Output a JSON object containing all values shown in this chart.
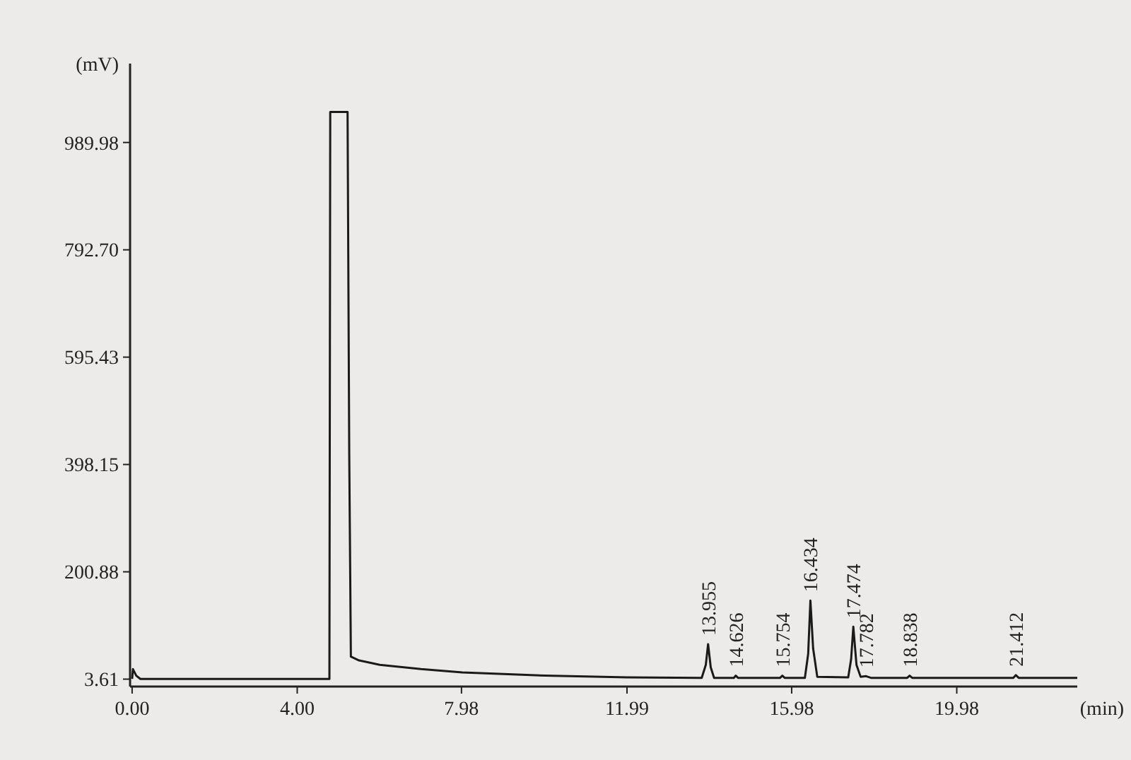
{
  "chart_data": {
    "type": "line",
    "xlabel": "(min)",
    "ylabel": "(mV)",
    "xlim": [
      -0.05,
      22.9
    ],
    "ylim": [
      -10,
      1135
    ],
    "xticks": [
      {
        "value": 0,
        "label": "0.00"
      },
      {
        "value": 4,
        "label": "4.00"
      },
      7.98,
      11.99,
      15.98,
      19.98
    ],
    "yticks": [
      3.61,
      200.88,
      398.15,
      595.43,
      {
        "value": 792.7,
        "label": "792.70"
      },
      989.98
    ],
    "grid": false,
    "marker": "none",
    "line_style": "solid",
    "series": [
      {
        "color": "#1a1a1a",
        "x": [
          0,
          0.02,
          0.1,
          0.2,
          4.78,
          4.8,
          5.22,
          5.26,
          5.3,
          5.5,
          6,
          7,
          8,
          10,
          12,
          13.8,
          13.9,
          13.955,
          14.02,
          14.1,
          14.58,
          14.626,
          14.68,
          15.7,
          15.754,
          15.81,
          16.3,
          16.38,
          16.434,
          16.5,
          16.6,
          17.35,
          17.42,
          17.474,
          17.55,
          17.65,
          17.782,
          17.9,
          18.78,
          18.838,
          18.9,
          21.35,
          21.412,
          21.48,
          22.9
        ],
        "values": [
          4,
          22,
          10,
          4,
          4,
          1046,
          1046,
          420,
          45,
          38,
          30,
          22,
          16,
          10,
          7,
          6,
          30,
          68,
          25,
          6,
          6,
          10,
          6,
          6,
          10,
          6,
          6,
          50,
          148,
          60,
          8,
          7,
          40,
          100,
          30,
          8,
          9,
          6,
          6,
          10,
          6,
          6,
          11,
          6,
          6
        ]
      }
    ],
    "annotations": [
      {
        "text": "13.955",
        "x": 13.955,
        "y": 68
      },
      {
        "text": "14.626",
        "x": 14.626,
        "y": 10
      },
      {
        "text": "15.754",
        "x": 15.754,
        "y": 10
      },
      {
        "text": "16.434",
        "x": 16.434,
        "y": 148
      },
      {
        "text": "17.474",
        "x": 17.474,
        "y": 100
      },
      {
        "text": "17.782",
        "x": 17.782,
        "y": 9
      },
      {
        "text": "18.838",
        "x": 18.838,
        "y": 10
      },
      {
        "text": "21.412",
        "x": 21.412,
        "y": 11
      }
    ]
  }
}
